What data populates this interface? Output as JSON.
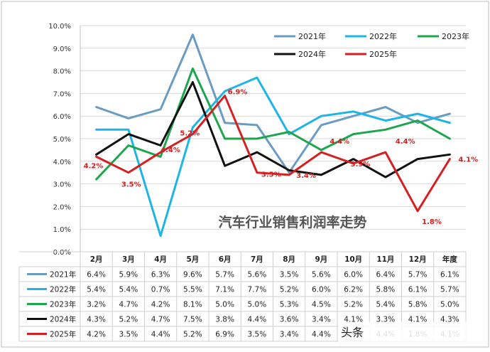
{
  "chart_data": {
    "type": "line",
    "title": "汽车行业销售利润率走势",
    "categories": [
      "2月",
      "3月",
      "4月",
      "5月",
      "6月",
      "7月",
      "8月",
      "9月",
      "10月",
      "11月",
      "12月",
      "年度"
    ],
    "y_ticks": [
      "0.0%",
      "1.0%",
      "2.0%",
      "3.0%",
      "4.0%",
      "5.0%",
      "6.0%",
      "7.0%",
      "8.0%",
      "9.0%",
      "10.0%"
    ],
    "ylim": [
      0,
      10
    ],
    "grid": true,
    "legend_position": "top-right",
    "series": [
      {
        "name": "2021年",
        "color": "#6a9bc3",
        "values": [
          6.4,
          5.9,
          6.3,
          9.6,
          5.7,
          5.6,
          3.5,
          5.6,
          6.0,
          6.4,
          5.7,
          6.1
        ],
        "labels": [
          "6.4%",
          "5.9%",
          "6.3%",
          "9.6%",
          "5.7%",
          "5.6%",
          "3.5%",
          "5.6%",
          "6.0%",
          "6.4%",
          "5.7%",
          "6.1%"
        ]
      },
      {
        "name": "2022年",
        "color": "#1eb4e4",
        "values": [
          5.4,
          5.4,
          0.7,
          5.5,
          7.1,
          7.7,
          5.2,
          6.0,
          6.2,
          5.8,
          6.1,
          5.7
        ],
        "labels": [
          "5.4%",
          "5.4%",
          "0.7%",
          "5.5%",
          "7.1%",
          "7.7%",
          "5.2%",
          "6.0%",
          "6.2%",
          "5.8%",
          "6.1%",
          "5.7%"
        ]
      },
      {
        "name": "2023年",
        "color": "#1ea64e",
        "values": [
          3.2,
          4.7,
          4.2,
          8.1,
          5.0,
          5.0,
          5.3,
          4.5,
          5.2,
          5.4,
          5.8,
          5.0
        ],
        "labels": [
          "3.2%",
          "4.7%",
          "4.2%",
          "8.1%",
          "5.0%",
          "5.0%",
          "5.3%",
          "4.5%",
          "5.2%",
          "5.4%",
          "5.8%",
          "5.0%"
        ]
      },
      {
        "name": "2024年",
        "color": "#111111",
        "values": [
          4.3,
          5.2,
          4.7,
          7.5,
          3.8,
          4.4,
          3.6,
          3.4,
          4.1,
          3.3,
          4.1,
          4.3
        ],
        "labels": [
          "4.3%",
          "5.2%",
          "4.7%",
          "7.5%",
          "3.8%",
          "4.4%",
          "3.6%",
          "3.4%",
          "4.1%",
          "3.3%",
          "4.1%",
          "4.3%"
        ]
      },
      {
        "name": "2025年",
        "color": "#d42020",
        "values": [
          4.2,
          3.5,
          4.4,
          5.2,
          6.9,
          3.5,
          3.4,
          4.4,
          3.9,
          4.4,
          1.8,
          4.1
        ],
        "labels": [
          "4.2%",
          "3.5%",
          "4.4%",
          "5.2%",
          "6.9%",
          "3.5%",
          "3.4%",
          "4.4%",
          "3.9%",
          "4.4%",
          "1.8%",
          "4.1%"
        ]
      }
    ],
    "annotations": [
      "4.2%",
      "3.5%",
      "4.4%",
      "5.2%",
      "6.9%",
      "3.5%",
      "3.4%",
      "4.4%",
      "3.9%",
      "4.4%",
      "1.8%",
      "4.1%"
    ]
  },
  "watermark": "头条"
}
